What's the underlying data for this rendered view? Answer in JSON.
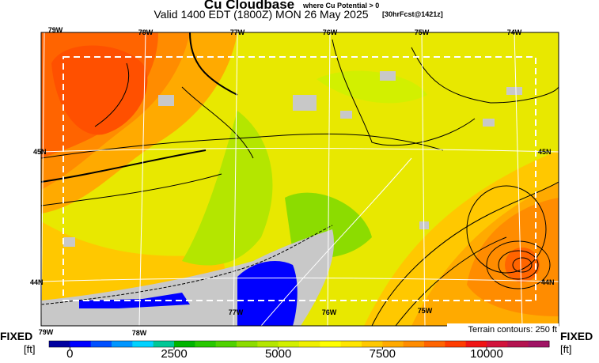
{
  "header": {
    "title": "Cu Cloudbase",
    "qualifier": "where Cu Potential > 0",
    "valid": "Valid 1400 EDT (1800Z) MON 26 May 2025",
    "forecast": "[30hrFcst@1421z]"
  },
  "map": {
    "lon_labels_top": [
      "79W",
      "78W",
      "77W",
      "76W",
      "75W",
      "74W"
    ],
    "lon_labels_bottom": [
      "79W",
      "78W",
      "77W",
      "76W",
      "75W"
    ],
    "lat_labels_left": [
      "45N",
      "44N"
    ],
    "lat_labels_right": [
      "45N",
      "44N"
    ],
    "terrain_note": "Terrain contours: 250 ft"
  },
  "legend": {
    "left_label": "FIXED",
    "left_unit": "[ft]",
    "right_label": "FIXED",
    "right_unit": "[ft]",
    "range": [
      -500,
      11500
    ],
    "ticks": [
      0,
      2500,
      5000,
      7500,
      10000
    ],
    "colors": [
      "#0000a0",
      "#0000ff",
      "#0050ff",
      "#0096ff",
      "#00d2ff",
      "#00c896",
      "#00b400",
      "#28c800",
      "#50d200",
      "#8cdc00",
      "#b4e600",
      "#d2f000",
      "#f0f000",
      "#ffff00",
      "#ffe600",
      "#ffc800",
      "#ffaa00",
      "#ff8c00",
      "#ff6400",
      "#ff3c00",
      "#f01414",
      "#d2143c",
      "#b41450",
      "#a01464"
    ]
  }
}
